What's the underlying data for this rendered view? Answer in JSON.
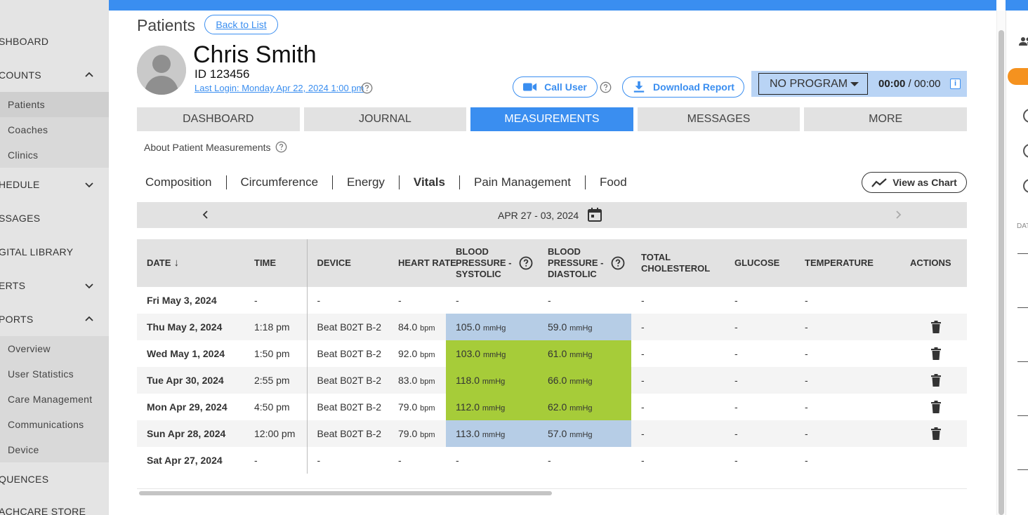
{
  "sidebar": {
    "items": [
      {
        "label": "SHBOARD",
        "kind": "top"
      },
      {
        "label": "COUNTS",
        "kind": "top",
        "chevron": "up"
      },
      {
        "label": "Patients",
        "kind": "sub",
        "active": true
      },
      {
        "label": "Coaches",
        "kind": "sub"
      },
      {
        "label": "Clinics",
        "kind": "sub"
      },
      {
        "label": "HEDULE",
        "kind": "top",
        "chevron": "down"
      },
      {
        "label": "SSAGES",
        "kind": "top"
      },
      {
        "label": "GITAL LIBRARY",
        "kind": "top"
      },
      {
        "label": "ERTS",
        "kind": "top",
        "chevron": "down"
      },
      {
        "label": "PORTS",
        "kind": "top",
        "chevron": "up"
      },
      {
        "label": "Overview",
        "kind": "sub"
      },
      {
        "label": "User Statistics",
        "kind": "sub"
      },
      {
        "label": "Care Management",
        "kind": "sub"
      },
      {
        "label": "Communications",
        "kind": "sub"
      },
      {
        "label": "Device",
        "kind": "sub"
      },
      {
        "label": "QUENCES",
        "kind": "top"
      },
      {
        "label": "ACHCARE STORE",
        "kind": "top"
      }
    ]
  },
  "header": {
    "title": "Patients",
    "back_label": "Back to List"
  },
  "patient": {
    "name": "Chris Smith",
    "id": "ID 123456",
    "last_login": "Last Login: Monday Apr 22, 2024 1:00 pm"
  },
  "actions": {
    "call_label": "Call User",
    "download_label": "Download Report"
  },
  "program": {
    "selected": "NO PROGRAM",
    "timer_elapsed": "00:00",
    "timer_separator": " / ",
    "timer_total": "00:00",
    "info_glyph": "i"
  },
  "tabs": [
    {
      "label": "DASHBOARD",
      "active": false
    },
    {
      "label": "JOURNAL",
      "active": false
    },
    {
      "label": "MEASUREMENTS",
      "active": true
    },
    {
      "label": "MESSAGES",
      "active": false
    },
    {
      "label": "MORE",
      "active": false
    }
  ],
  "about_label": "About Patient Measurements",
  "subtabs": [
    {
      "label": "Composition",
      "active": false
    },
    {
      "label": "Circumference",
      "active": false
    },
    {
      "label": "Energy",
      "active": false
    },
    {
      "label": "Vitals",
      "active": true
    },
    {
      "label": "Pain Management",
      "active": false
    },
    {
      "label": "Food",
      "active": false
    }
  ],
  "view_chart_label": "View as Chart",
  "date_range": "APR 27 - 03, 2024",
  "table": {
    "columns": [
      {
        "label": "DATE",
        "sort_glyph": "↓"
      },
      {
        "label": "TIME"
      },
      {
        "label": "DEVICE"
      },
      {
        "label": "HEART RATE"
      },
      {
        "label": "BLOOD PRESSURE - SYSTOLIC",
        "help": true
      },
      {
        "label": "BLOOD PRESSURE - DIASTOLIC",
        "help": true
      },
      {
        "label": "TOTAL CHOLESTEROL"
      },
      {
        "label": "GLUCOSE"
      },
      {
        "label": "TEMPERATURE"
      },
      {
        "label": "ACTIONS"
      }
    ],
    "rows": [
      {
        "date": "Fri May 3, 2024",
        "time": "-",
        "device": "-",
        "hr": "-",
        "hr_unit": "",
        "sys": "-",
        "sys_unit": "",
        "dia": "-",
        "dia_unit": "",
        "bp_status": "",
        "chol": "-",
        "glu": "-",
        "temp": "-",
        "delete": false
      },
      {
        "date": "Thu May 2, 2024",
        "time": "1:18 pm",
        "device": "Beat B02T B-2",
        "hr": "84.0",
        "hr_unit": "bpm",
        "sys": "105.0",
        "sys_unit": "mmHg",
        "dia": "59.0",
        "dia_unit": "mmHg",
        "bp_status": "blue",
        "chol": "-",
        "glu": "-",
        "temp": "-",
        "delete": true
      },
      {
        "date": "Wed May 1, 2024",
        "time": "1:50 pm",
        "device": "Beat B02T B-2",
        "hr": "92.0",
        "hr_unit": "bpm",
        "sys": "103.0",
        "sys_unit": "mmHg",
        "dia": "61.0",
        "dia_unit": "mmHg",
        "bp_status": "green",
        "chol": "-",
        "glu": "-",
        "temp": "-",
        "delete": true
      },
      {
        "date": "Tue Apr 30, 2024",
        "time": "2:55 pm",
        "device": "Beat B02T B-2",
        "hr": "83.0",
        "hr_unit": "bpm",
        "sys": "118.0",
        "sys_unit": "mmHg",
        "dia": "66.0",
        "dia_unit": "mmHg",
        "bp_status": "green",
        "chol": "-",
        "glu": "-",
        "temp": "-",
        "delete": true
      },
      {
        "date": "Mon Apr 29, 2024",
        "time": "4:50 pm",
        "device": "Beat B02T B-2",
        "hr": "79.0",
        "hr_unit": "bpm",
        "sys": "112.0",
        "sys_unit": "mmHg",
        "dia": "62.0",
        "dia_unit": "mmHg",
        "bp_status": "green",
        "chol": "-",
        "glu": "-",
        "temp": "-",
        "delete": true
      },
      {
        "date": "Sun Apr 28, 2024",
        "time": "12:00 pm",
        "device": "Beat B02T B-2",
        "hr": "79.0",
        "hr_unit": "bpm",
        "sys": "113.0",
        "sys_unit": "mmHg",
        "dia": "57.0",
        "dia_unit": "mmHg",
        "bp_status": "blue",
        "chol": "-",
        "glu": "-",
        "temp": "-",
        "delete": true
      },
      {
        "date": "Sat Apr 27, 2024",
        "time": "-",
        "device": "-",
        "hr": "-",
        "hr_unit": "",
        "sys": "-",
        "sys_unit": "",
        "dia": "-",
        "dia_unit": "",
        "bp_status": "",
        "chol": "-",
        "glu": "-",
        "temp": "-",
        "delete": false
      }
    ]
  },
  "right_panel": {
    "label": "DAT"
  },
  "colors": {
    "accent": "#3a8ef0",
    "bp_in_range": "#a6cc39",
    "bp_low": "#b6cde6",
    "orange": "#f5921f"
  }
}
